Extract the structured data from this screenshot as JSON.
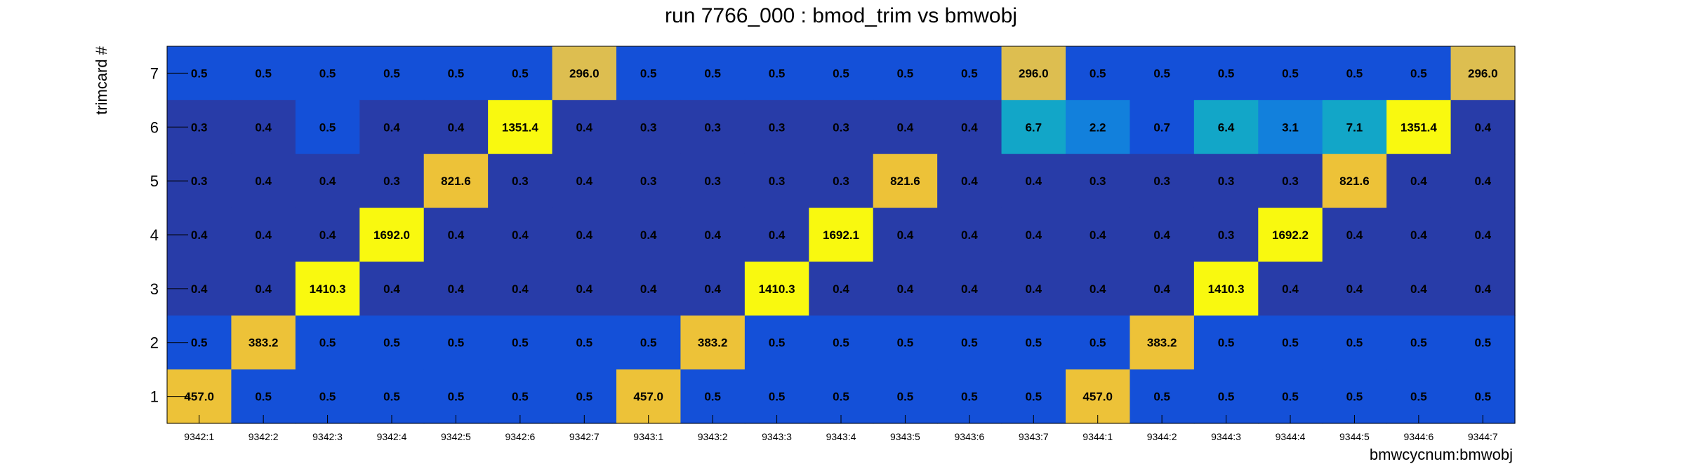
{
  "chart_data": {
    "type": "heatmap",
    "title": "run 7766_000 : bmod_trim vs bmwobj",
    "xlabel": "bmwcycnum:bmwobj",
    "ylabel": "trimcard #",
    "x": [
      "9342:1",
      "9342:2",
      "9342:3",
      "9342:4",
      "9342:5",
      "9342:6",
      "9342:7",
      "9343:1",
      "9343:2",
      "9343:3",
      "9343:4",
      "9343:5",
      "9343:6",
      "9343:7",
      "9344:1",
      "9344:2",
      "9344:3",
      "9344:4",
      "9344:5",
      "9344:6",
      "9344:7"
    ],
    "y": [
      "1",
      "2",
      "3",
      "4",
      "5",
      "6",
      "7"
    ],
    "rows": [
      {
        "y": "7",
        "values": [
          "0.5",
          "0.5",
          "0.5",
          "0.5",
          "0.5",
          "0.5",
          "296.0",
          "0.5",
          "0.5",
          "0.5",
          "0.5",
          "0.5",
          "0.5",
          "296.0",
          "0.5",
          "0.5",
          "0.5",
          "0.5",
          "0.5",
          "0.5",
          "296.0"
        ]
      },
      {
        "y": "6",
        "values": [
          "0.3",
          "0.4",
          "0.5",
          "0.4",
          "0.4",
          "1351.4",
          "0.4",
          "0.3",
          "0.3",
          "0.3",
          "0.3",
          "0.4",
          "0.4",
          "6.7",
          "2.2",
          "0.7",
          "6.4",
          "3.1",
          "7.1",
          "1351.4",
          "0.4"
        ]
      },
      {
        "y": "5",
        "values": [
          "0.3",
          "0.4",
          "0.4",
          "0.3",
          "821.6",
          "0.3",
          "0.4",
          "0.3",
          "0.3",
          "0.3",
          "0.3",
          "821.6",
          "0.4",
          "0.4",
          "0.3",
          "0.3",
          "0.3",
          "0.3",
          "821.6",
          "0.4",
          "0.4"
        ]
      },
      {
        "y": "4",
        "values": [
          "0.4",
          "0.4",
          "0.4",
          "1692.0",
          "0.4",
          "0.4",
          "0.4",
          "0.4",
          "0.4",
          "0.4",
          "1692.1",
          "0.4",
          "0.4",
          "0.4",
          "0.4",
          "0.4",
          "0.3",
          "1692.2",
          "0.4",
          "0.4",
          "0.4"
        ]
      },
      {
        "y": "3",
        "values": [
          "0.4",
          "0.4",
          "1410.3",
          "0.4",
          "0.4",
          "0.4",
          "0.4",
          "0.4",
          "0.4",
          "1410.3",
          "0.4",
          "0.4",
          "0.4",
          "0.4",
          "0.4",
          "0.4",
          "1410.3",
          "0.4",
          "0.4",
          "0.4",
          "0.4"
        ]
      },
      {
        "y": "2",
        "values": [
          "0.5",
          "383.2",
          "0.5",
          "0.5",
          "0.5",
          "0.5",
          "0.5",
          "0.5",
          "383.2",
          "0.5",
          "0.5",
          "0.5",
          "0.5",
          "0.5",
          "0.5",
          "383.2",
          "0.5",
          "0.5",
          "0.5",
          "0.5",
          "0.5"
        ]
      },
      {
        "y": "1",
        "values": [
          "457.0",
          "0.5",
          "0.5",
          "0.5",
          "0.5",
          "0.5",
          "0.5",
          "457.0",
          "0.5",
          "0.5",
          "0.5",
          "0.5",
          "0.5",
          "0.5",
          "457.0",
          "0.5",
          "0.5",
          "0.5",
          "0.5",
          "0.5",
          "0.5"
        ]
      }
    ],
    "colors": {
      "low_dark": "#283CA8",
      "low_mid": "#1450D8",
      "mid_blue": "#1280DC",
      "mid_teal": "#12A6C8",
      "orange": "#EDC238",
      "orange_dark": "#DDBE50",
      "yellow": "#F9F90F"
    },
    "legend": "none",
    "grid": false
  }
}
